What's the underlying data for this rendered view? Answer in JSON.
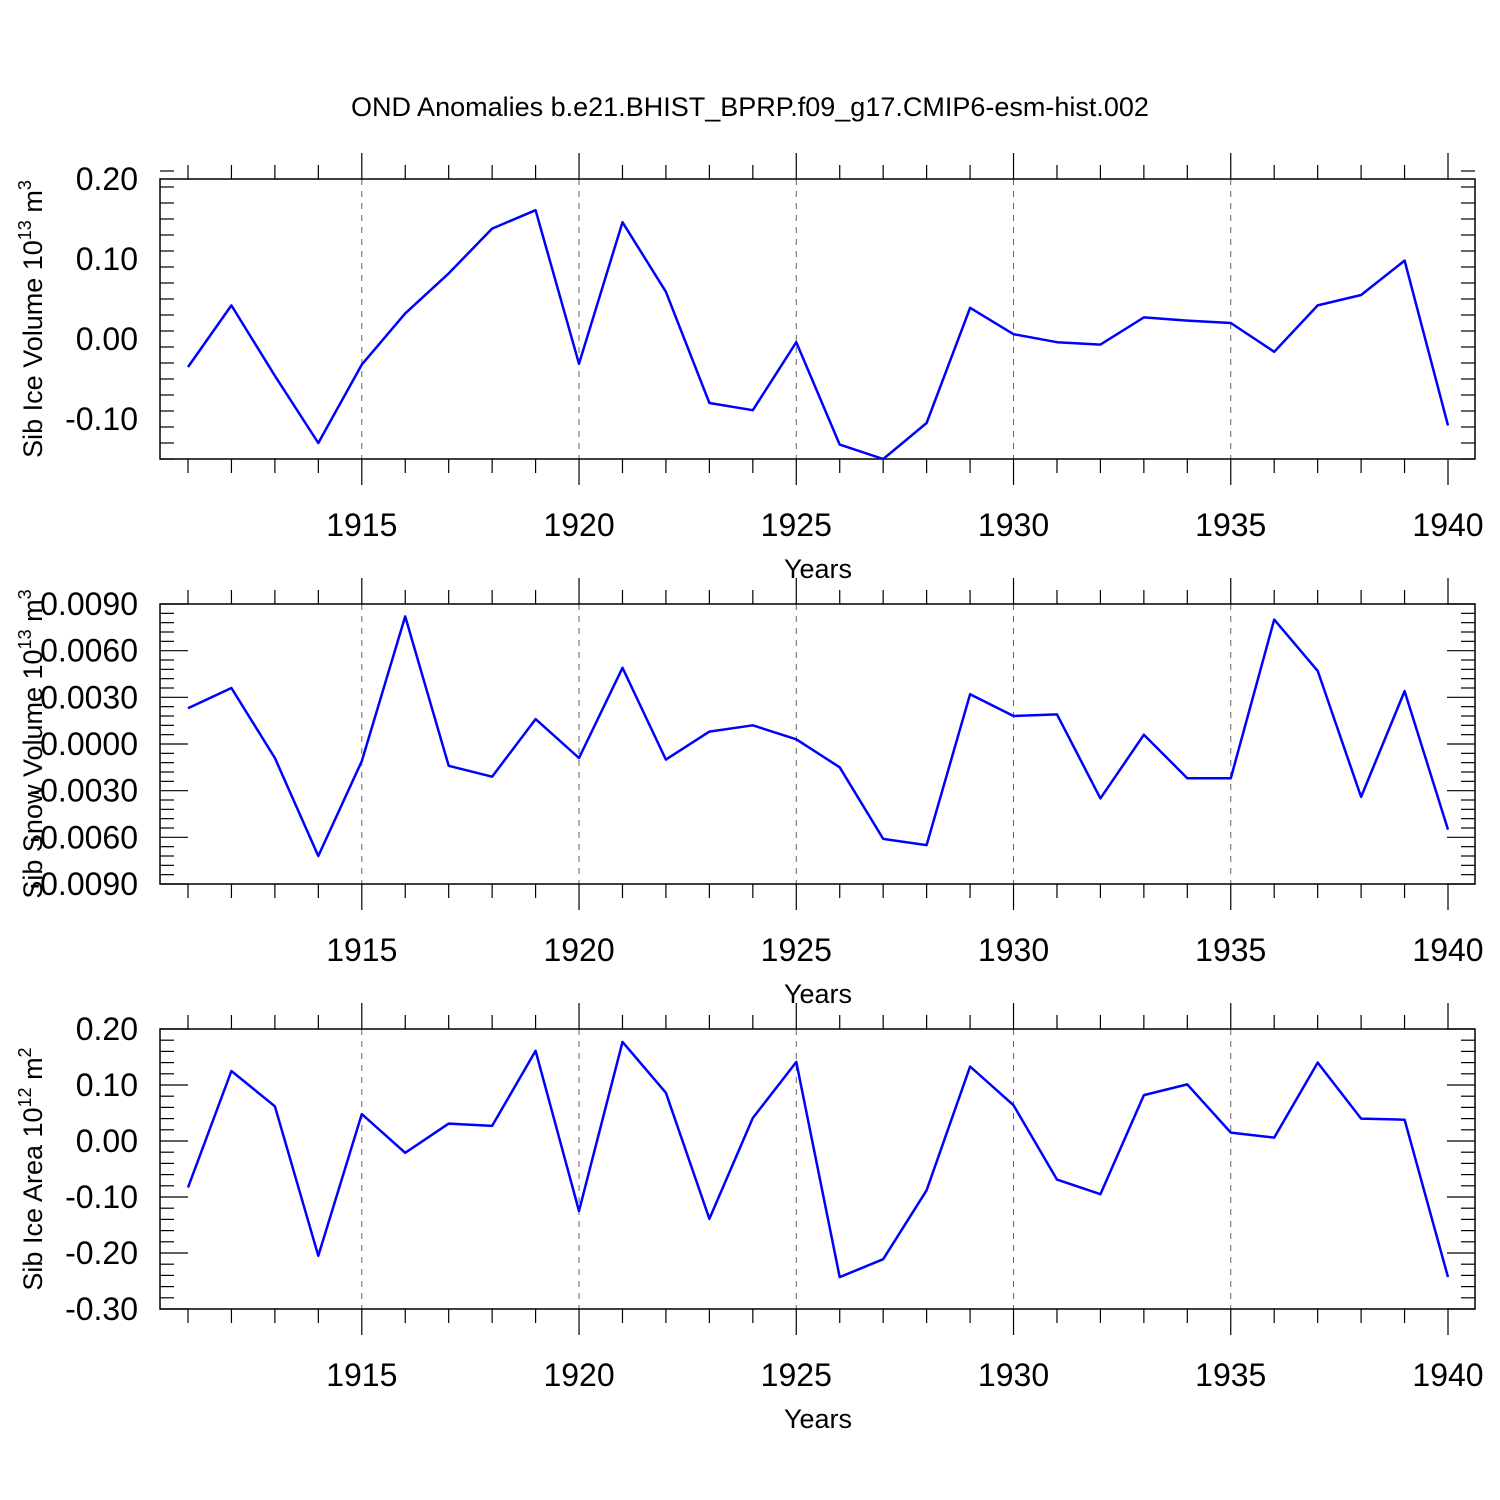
{
  "title": "OND Anomalies b.e21.BHIST_BPRP.f09_g17.CMIP6-esm-hist.002",
  "line_color": "#0000ff",
  "chart_data": [
    {
      "type": "line",
      "series_name": "Sib Ice Volume",
      "ylabel": "Sib Ice Volume 10",
      "ylabel_exp": "13",
      "ylabel_unit": " m",
      "ylabel_unit_exp": "3",
      "xlabel": "Years",
      "ylim": [
        -0.15,
        0.2
      ],
      "yticks": [
        -0.1,
        0.0,
        0.1,
        0.2
      ],
      "ytick_labels": [
        "-0.10",
        "0.00",
        "0.10",
        "0.20"
      ],
      "xlim": [
        1911,
        1940
      ],
      "xticks": [
        1915,
        1920,
        1925,
        1930,
        1935,
        1940
      ],
      "xtick_labels": [
        "1915",
        "1920",
        "1925",
        "1930",
        "1935",
        "1940"
      ],
      "grid_x": [
        1915,
        1920,
        1925,
        1930,
        1935
      ],
      "x": [
        1911,
        1912,
        1913,
        1914,
        1915,
        1916,
        1917,
        1918,
        1919,
        1920,
        1921,
        1922,
        1923,
        1924,
        1925,
        1926,
        1927,
        1928,
        1929,
        1930,
        1931,
        1932,
        1933,
        1934,
        1935,
        1936,
        1937,
        1938,
        1939,
        1940
      ],
      "values": [
        -0.035,
        0.042,
        -0.046,
        -0.13,
        -0.032,
        0.032,
        0.082,
        0.138,
        0.161,
        -0.031,
        0.146,
        0.059,
        -0.08,
        -0.089,
        -0.004,
        -0.132,
        -0.15,
        -0.105,
        0.039,
        0.006,
        -0.004,
        -0.007,
        0.027,
        0.023,
        0.02,
        -0.016,
        0.042,
        0.055,
        0.098,
        -0.108
      ]
    },
    {
      "type": "line",
      "series_name": "Sib Snow Volume",
      "ylabel": "Sib Snow Volume 10",
      "ylabel_exp": "13",
      "ylabel_unit": " m",
      "ylabel_unit_exp": "3",
      "xlabel": "Years",
      "ylim": [
        -0.009,
        0.009
      ],
      "yticks": [
        -0.009,
        -0.006,
        -0.003,
        0.0,
        0.003,
        0.006,
        0.009
      ],
      "ytick_labels": [
        "-0.0090",
        "-0.0060",
        "-0.0030",
        "0.0000",
        "0.0030",
        "0.0060",
        "0.0090"
      ],
      "xlim": [
        1911,
        1940
      ],
      "xticks": [
        1915,
        1920,
        1925,
        1930,
        1935,
        1940
      ],
      "xtick_labels": [
        "1915",
        "1920",
        "1925",
        "1930",
        "1935",
        "1940"
      ],
      "grid_x": [
        1915,
        1920,
        1925,
        1930,
        1935
      ],
      "x": [
        1911,
        1912,
        1913,
        1914,
        1915,
        1916,
        1917,
        1918,
        1919,
        1920,
        1921,
        1922,
        1923,
        1924,
        1925,
        1926,
        1927,
        1928,
        1929,
        1930,
        1931,
        1932,
        1933,
        1934,
        1935,
        1936,
        1937,
        1938,
        1939,
        1940
      ],
      "values": [
        0.0023,
        0.0036,
        -0.0009,
        -0.0072,
        -0.0011,
        0.0082,
        -0.0014,
        -0.0021,
        0.0016,
        -0.0009,
        0.0049,
        -0.001,
        0.0008,
        0.0012,
        0.0003,
        -0.0015,
        -0.0061,
        -0.0065,
        0.0032,
        0.0018,
        0.0019,
        -0.0035,
        0.0006,
        -0.0022,
        -0.0022,
        0.008,
        0.0047,
        -0.0034,
        0.0034,
        -0.0055
      ]
    },
    {
      "type": "line",
      "series_name": "Sib Ice Area",
      "ylabel": "Sib Ice Area 10",
      "ylabel_exp": "12",
      "ylabel_unit": " m",
      "ylabel_unit_exp": "2",
      "xlabel": "Years",
      "ylim": [
        -0.3,
        0.2
      ],
      "yticks": [
        -0.3,
        -0.2,
        -0.1,
        0.0,
        0.1,
        0.2
      ],
      "ytick_labels": [
        "-0.30",
        "-0.20",
        "-0.10",
        "0.00",
        "0.10",
        "0.20"
      ],
      "xlim": [
        1911,
        1940
      ],
      "xticks": [
        1915,
        1920,
        1925,
        1930,
        1935,
        1940
      ],
      "xtick_labels": [
        "1915",
        "1920",
        "1925",
        "1930",
        "1935",
        "1940"
      ],
      "grid_x": [
        1915,
        1920,
        1925,
        1930,
        1935
      ],
      "x": [
        1911,
        1912,
        1913,
        1914,
        1915,
        1916,
        1917,
        1918,
        1919,
        1920,
        1921,
        1922,
        1923,
        1924,
        1925,
        1926,
        1927,
        1928,
        1929,
        1930,
        1931,
        1932,
        1933,
        1934,
        1935,
        1936,
        1937,
        1938,
        1939,
        1940
      ],
      "values": [
        -0.083,
        0.125,
        0.062,
        -0.205,
        0.048,
        -0.021,
        0.031,
        0.027,
        0.161,
        -0.125,
        0.177,
        0.086,
        -0.139,
        0.041,
        0.141,
        -0.243,
        -0.211,
        -0.088,
        0.133,
        0.064,
        -0.069,
        -0.095,
        0.082,
        0.101,
        0.015,
        0.006,
        0.14,
        0.04,
        0.038,
        -0.243
      ]
    }
  ]
}
